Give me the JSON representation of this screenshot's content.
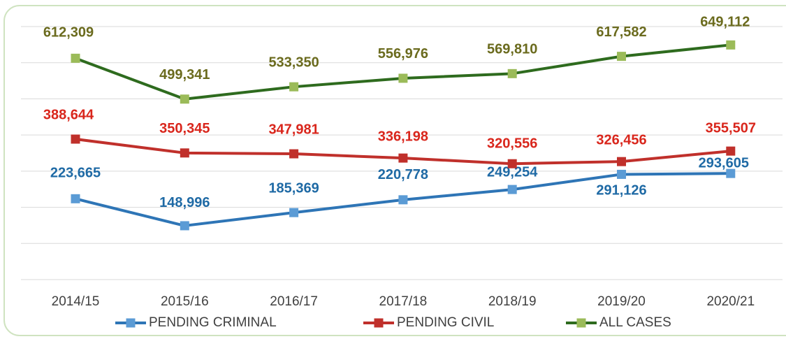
{
  "chart_data": {
    "type": "line",
    "categories": [
      "2014/15",
      "2015/16",
      "2016/17",
      "2017/18",
      "2018/19",
      "2019/20",
      "2020/21"
    ],
    "series": [
      {
        "name": "PENDING CRIMINAL",
        "color": "#2e75b6",
        "marker_color": "#5b9bd5",
        "label_color": "#1f6aa5",
        "values": [
          223665,
          148996,
          185369,
          220778,
          249254,
          291126,
          293605
        ],
        "value_labels": [
          "223,665",
          "148,996",
          "185,369",
          "220,778",
          "249,254",
          "291,126",
          "293,605"
        ]
      },
      {
        "name": "PENDING CIVIL",
        "color": "#c0302b",
        "marker_color": "#c0302b",
        "label_color": "#d9261c",
        "values": [
          388644,
          350345,
          347981,
          336198,
          320556,
          326456,
          355507
        ],
        "value_labels": [
          "388,644",
          "350,345",
          "347,981",
          "336,198",
          "320,556",
          "326,456",
          "355,507"
        ]
      },
      {
        "name": "ALL CASES",
        "color": "#2e6b1e",
        "marker_color": "#9bbb59",
        "label_color": "#6b6b1e",
        "values": [
          612309,
          499341,
          533350,
          556976,
          569810,
          617582,
          649112
        ],
        "value_labels": [
          "612,309",
          "499,341",
          "533,350",
          "556,976",
          "569,810",
          "617,582",
          "649,112"
        ]
      }
    ],
    "ylim": [
      0,
      700000
    ],
    "yticks": [
      0,
      100000,
      200000,
      300000,
      400000,
      500000,
      600000,
      700000
    ],
    "grid": true,
    "legend": "bottom"
  }
}
